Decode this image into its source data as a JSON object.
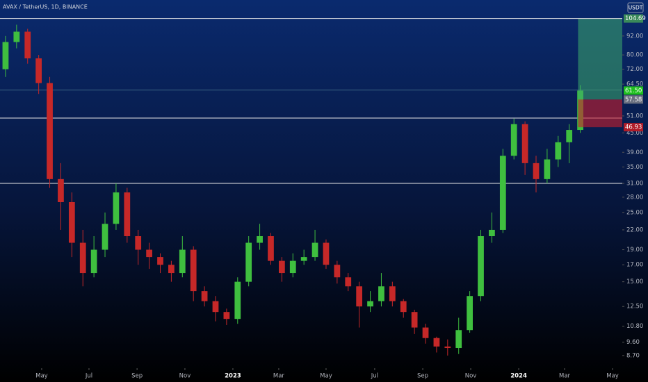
{
  "chart_data": {
    "type": "candlestick",
    "title": "AVAX / TetherUS, 1D, BINANCE",
    "currency": "USDT",
    "up_color": "#3fbf3f",
    "down_color": "#c62828",
    "open": [
      72,
      88,
      95,
      78,
      65,
      32,
      27,
      20,
      16,
      19,
      23,
      29,
      21,
      19,
      18,
      17,
      16,
      19,
      14,
      13,
      12,
      11.4,
      15,
      20,
      21,
      17.5,
      16,
      17.5,
      18,
      20,
      17,
      15.5,
      14.5,
      12.5,
      13,
      14.5,
      13,
      12,
      10.7,
      9.9,
      9.3,
      9.2,
      10.5,
      13.5,
      21,
      22,
      38,
      48,
      36,
      32,
      37,
      42,
      46
    ],
    "high": [
      92,
      100,
      97,
      80,
      68,
      36,
      29,
      22,
      21,
      25,
      31,
      30,
      22,
      20,
      18.5,
      17.5,
      21,
      19.5,
      14.5,
      13.5,
      12.3,
      15.5,
      21,
      23,
      21.5,
      18,
      18.5,
      19,
      22,
      20.5,
      17.5,
      16,
      15,
      14,
      16,
      15,
      13.2,
      12.2,
      11,
      10,
      9.8,
      11.5,
      14,
      22,
      25,
      40,
      50,
      49,
      38,
      40,
      44,
      48,
      64
    ],
    "low": [
      68,
      84,
      75,
      60,
      30,
      22,
      18,
      14.5,
      15.5,
      18,
      22,
      20,
      17,
      16.5,
      16,
      15,
      15.5,
      13,
      12.5,
      11.2,
      10.9,
      11,
      14.5,
      19,
      17,
      15,
      15.5,
      17,
      17.5,
      16.5,
      14.8,
      14,
      10.7,
      12,
      12.5,
      12.5,
      11.5,
      10.2,
      9.5,
      8.9,
      8.7,
      8.8,
      10.3,
      13,
      20,
      21.5,
      37,
      33,
      29,
      31,
      35,
      36,
      45
    ],
    "close": [
      88,
      95,
      78,
      65,
      32,
      27,
      20,
      16,
      19,
      23,
      29,
      21,
      19,
      18,
      17,
      16,
      19,
      14,
      13,
      12,
      11.4,
      15,
      20,
      21,
      17.5,
      16,
      17.5,
      18,
      20,
      17,
      15.5,
      14.5,
      12.5,
      13,
      14.5,
      13,
      12,
      10.7,
      9.9,
      9.3,
      9.2,
      10.5,
      13.5,
      21,
      22,
      38,
      48,
      36,
      32,
      37,
      42,
      46,
      61.5
    ],
    "xlim": [
      -0.5,
      55.8
    ],
    "xticks": [
      {
        "value": 3.27,
        "label": "May"
      },
      {
        "value": 7.55,
        "label": "Jul"
      },
      {
        "value": 11.9,
        "label": "Sep"
      },
      {
        "value": 16.23,
        "label": "Nov"
      },
      {
        "value": 20.57,
        "label": "2023"
      },
      {
        "value": 24.72,
        "label": "Mar"
      },
      {
        "value": 29.0,
        "label": "May"
      },
      {
        "value": 33.4,
        "label": "Jul"
      },
      {
        "value": 37.75,
        "label": "Sep"
      },
      {
        "value": 42.09,
        "label": "Nov"
      },
      {
        "value": 46.43,
        "label": "2024"
      },
      {
        "value": 50.58,
        "label": "Mar"
      },
      {
        "value": 54.92,
        "label": "May"
      }
    ],
    "log_scale": true,
    "ylim": [
      7.93,
      120
    ],
    "yticks": [
      {
        "value": 92,
        "label": "92.00"
      },
      {
        "value": 80,
        "label": "80.00"
      },
      {
        "value": 72,
        "label": "72.00"
      },
      {
        "value": 64.5,
        "label": "64.50"
      },
      {
        "value": 51,
        "label": "51.00"
      },
      {
        "value": 45,
        "label": "45.00"
      },
      {
        "value": 39,
        "label": "39.00"
      },
      {
        "value": 35,
        "label": "35.00"
      },
      {
        "value": 31,
        "label": "31.00"
      },
      {
        "value": 28,
        "label": "28.00"
      },
      {
        "value": 25,
        "label": "25.00"
      },
      {
        "value": 22,
        "label": "22.00"
      },
      {
        "value": 19,
        "label": "19.00"
      },
      {
        "value": 17,
        "label": "17.00"
      },
      {
        "value": 15,
        "label": "15.00"
      },
      {
        "value": 12.5,
        "label": "12.50"
      },
      {
        "value": 10.8,
        "label": "10.80"
      },
      {
        "value": 9.6,
        "label": "9.60"
      },
      {
        "value": 8.7,
        "label": "8.70"
      }
    ],
    "levels": [
      61.7,
      50.2,
      31.0
    ],
    "position": {
      "start": 51.8,
      "target": {
        "value": 104.69,
        "label": "104.69"
      },
      "entry": {
        "value": 57.58,
        "label": "57.58"
      },
      "stop": {
        "value": 46.93,
        "label": "46.93"
      }
    },
    "last_price": {
      "value": 61.5,
      "label": "61.50"
    }
  }
}
